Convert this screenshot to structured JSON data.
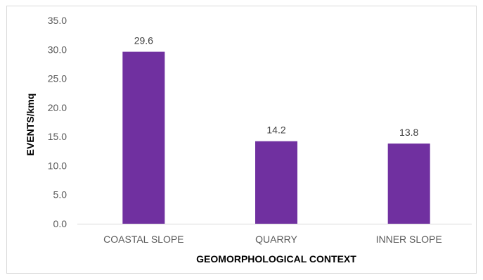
{
  "chart_data": {
    "type": "bar",
    "categories": [
      "COASTAL SLOPE",
      "QUARRY",
      "INNER SLOPE"
    ],
    "values": [
      29.6,
      14.2,
      13.8
    ],
    "data_labels": [
      "29.6",
      "14.2",
      "13.8"
    ],
    "title": "",
    "xlabel": "GEOMORPHOLOGICAL CONTEXT",
    "ylabel": "EVENTS/kmq",
    "ylim": [
      0,
      35
    ],
    "yticks": [
      "0.0",
      "5.0",
      "10.0",
      "15.0",
      "20.0",
      "25.0",
      "30.0",
      "35.0"
    ],
    "ytick_values": [
      0,
      5,
      10,
      15,
      20,
      25,
      30,
      35
    ],
    "grid": false,
    "legend": "none",
    "bar_color": "#7030a0"
  }
}
